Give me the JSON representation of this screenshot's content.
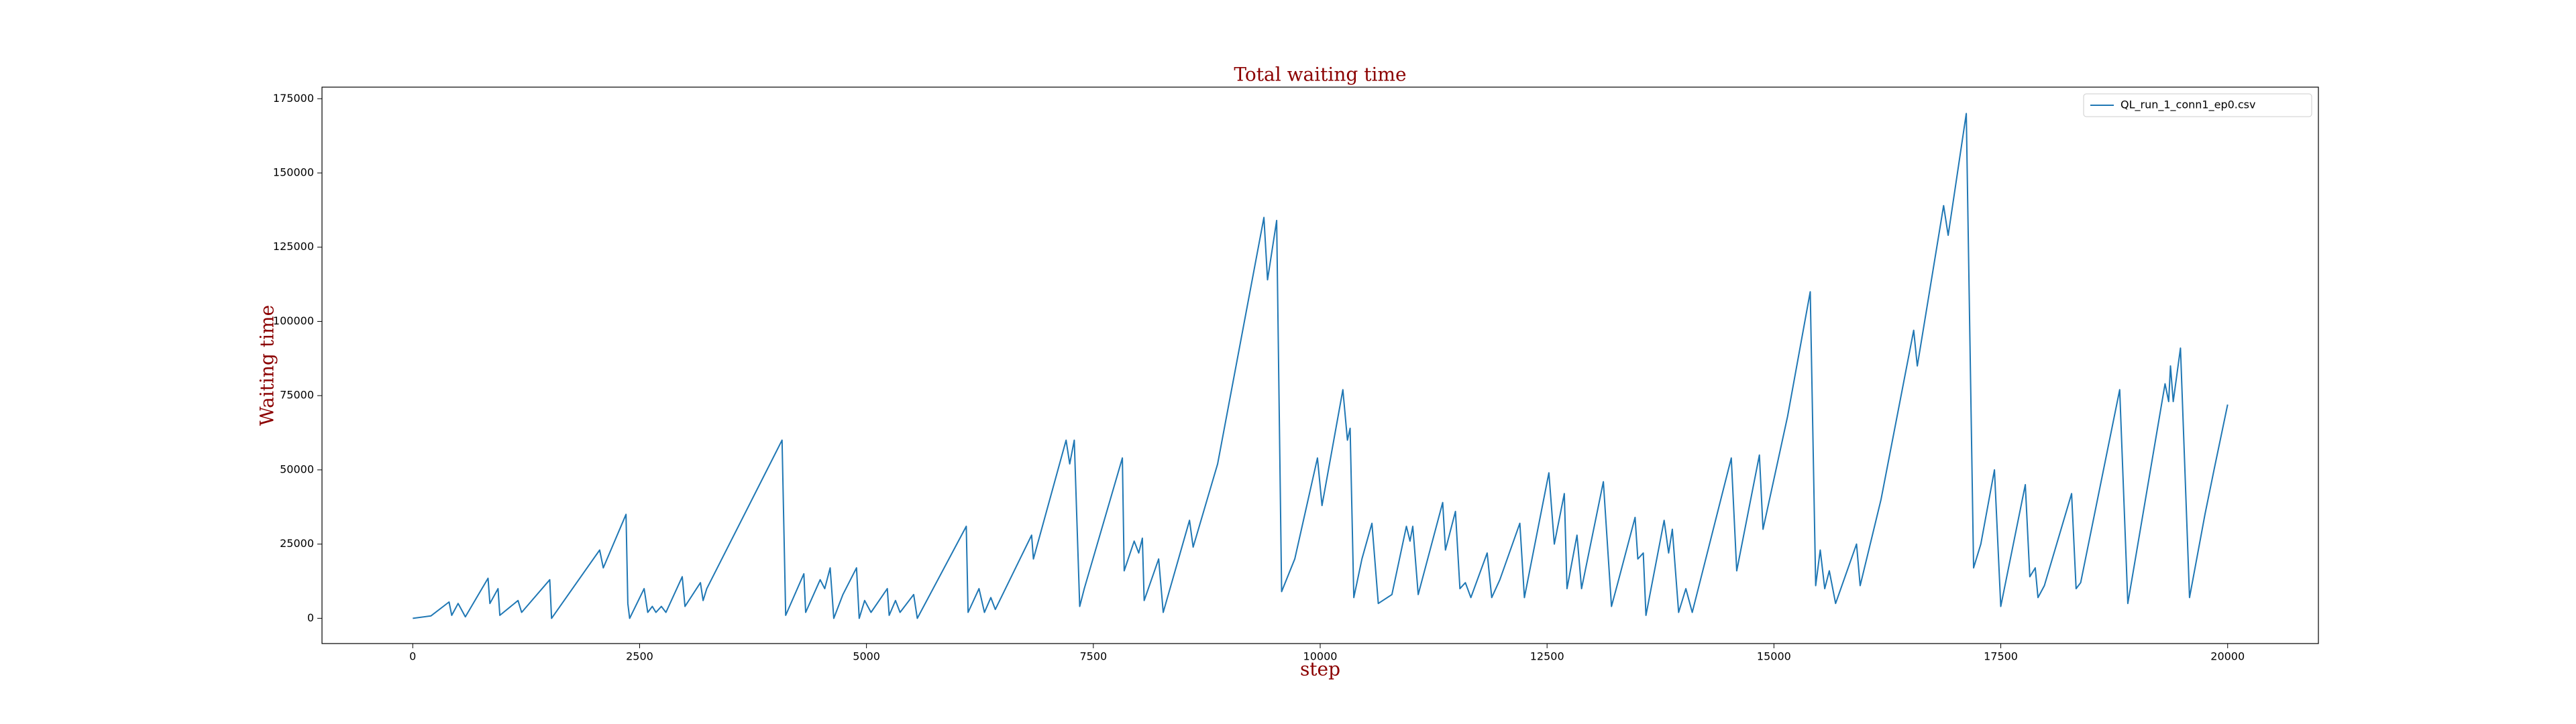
{
  "chart_data": {
    "type": "line",
    "title": "Total waiting time",
    "xlabel": "step",
    "ylabel": "Waiting time",
    "x": [
      0,
      200,
      400,
      430,
      500,
      580,
      830,
      850,
      940,
      960,
      1160,
      1200,
      1510,
      1530,
      2060,
      2100,
      2350,
      2370,
      2390,
      2550,
      2590,
      2640,
      2680,
      2740,
      2790,
      2970,
      3000,
      3170,
      3200,
      3240,
      4070,
      4110,
      4310,
      4330,
      4490,
      4540,
      4600,
      4640,
      4740,
      4890,
      4920,
      4980,
      5050,
      5230,
      5250,
      5320,
      5370,
      5520,
      5560,
      6100,
      6120,
      6240,
      6300,
      6370,
      6420,
      6820,
      6840,
      7200,
      7240,
      7290,
      7350,
      7400,
      7820,
      7840,
      7950,
      8000,
      8040,
      8060,
      8220,
      8270,
      8560,
      8600,
      8870,
      9380,
      9420,
      9520,
      9575,
      9720,
      9970,
      10020,
      10250,
      10300,
      10330,
      10370,
      10460,
      10570,
      10640,
      10790,
      10950,
      10990,
      11020,
      11080,
      11350,
      11380,
      11490,
      11540,
      11600,
      11660,
      11840,
      11890,
      11980,
      12200,
      12250,
      12520,
      12580,
      12690,
      12720,
      12830,
      12880,
      13120,
      13210,
      13280,
      13470,
      13500,
      13560,
      13590,
      13790,
      13840,
      13880,
      13950,
      14030,
      14100,
      14530,
      14590,
      14840,
      14880,
      15150,
      15400,
      15460,
      15510,
      15560,
      15610,
      15680,
      15910,
      15950,
      16180,
      16540,
      16580,
      16870,
      16920,
      17120,
      17200,
      17280,
      17430,
      17500,
      17770,
      17820,
      17880,
      17910,
      17980,
      18280,
      18330,
      18380,
      18810,
      18900,
      19310,
      19350,
      19370,
      19400,
      19480,
      19580,
      19750,
      19850,
      20000
    ],
    "series": [
      {
        "name": "QL_run_1_conn1_ep0.csv",
        "color": "#1f77b4",
        "values": [
          0,
          800,
          5500,
          1000,
          5000,
          500,
          13500,
          5000,
          10000,
          1000,
          6000,
          2000,
          13000,
          0,
          23000,
          17000,
          35000,
          5000,
          0,
          10000,
          2000,
          4000,
          2000,
          4000,
          2000,
          14000,
          4000,
          12000,
          6000,
          10000,
          60000,
          1000,
          15000,
          2000,
          13000,
          10000,
          17000,
          0,
          8000,
          17000,
          0,
          6000,
          2000,
          10000,
          1000,
          6000,
          2000,
          8000,
          0,
          31000,
          2000,
          10000,
          2000,
          7000,
          3000,
          28000,
          20000,
          60000,
          52000,
          60000,
          4000,
          10000,
          54000,
          16000,
          26000,
          22000,
          27000,
          6000,
          20000,
          2000,
          33000,
          24000,
          52000,
          135000,
          114000,
          134000,
          9000,
          20000,
          54000,
          38000,
          77000,
          60000,
          64000,
          7000,
          20000,
          32000,
          5000,
          8000,
          31000,
          26000,
          31000,
          8000,
          39000,
          23000,
          36000,
          10000,
          12000,
          7000,
          22000,
          7000,
          13000,
          32000,
          7000,
          49000,
          25000,
          42000,
          10000,
          28000,
          10000,
          46000,
          4000,
          12000,
          34000,
          20000,
          22000,
          1000,
          33000,
          22000,
          30000,
          2000,
          10000,
          2000,
          54000,
          16000,
          55000,
          30000,
          68000,
          110000,
          11000,
          23000,
          10000,
          16000,
          5000,
          25000,
          11000,
          40000,
          97000,
          85000,
          139000,
          129000,
          170000,
          17000,
          25000,
          50000,
          4000,
          45000,
          14000,
          17000,
          7000,
          11000,
          42000,
          10000,
          12000,
          77000,
          5000,
          79000,
          73000,
          85000,
          73000,
          91000,
          7000,
          35000,
          50000,
          72000
        ]
      }
    ],
    "xlim": [
      -1000,
      21000
    ],
    "xticks": [
      0,
      2500,
      5000,
      7500,
      10000,
      12500,
      15000,
      17500,
      20000
    ],
    "ylim": [
      -8500,
      178900
    ],
    "yticks": [
      0,
      25000,
      50000,
      75000,
      100000,
      125000,
      150000,
      175000
    ],
    "grid": false,
    "legend": "upper right"
  }
}
